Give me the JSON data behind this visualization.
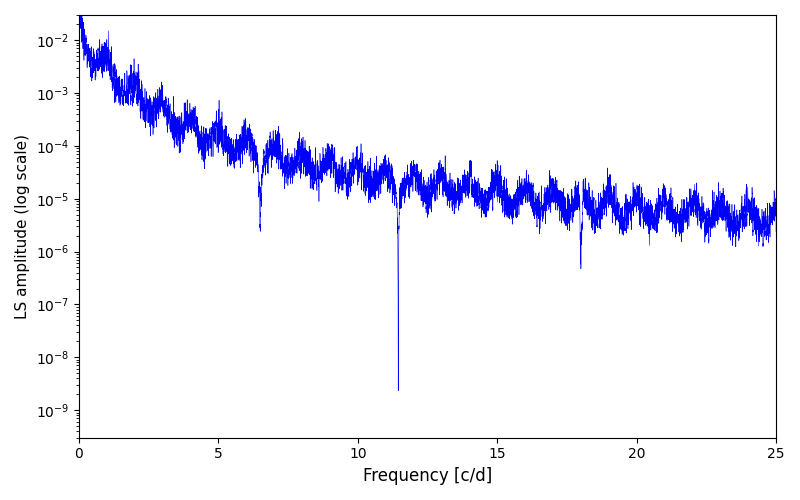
{
  "title": "",
  "xlabel": "Frequency [c/d]",
  "ylabel": "LS amplitude (log scale)",
  "xlim": [
    0,
    25
  ],
  "ylim": [
    3e-10,
    0.03
  ],
  "line_color": "#0000ff",
  "line_width": 0.4,
  "figsize": [
    8.0,
    5.0
  ],
  "dpi": 100,
  "freq_max": 25.0,
  "n_points": 15000,
  "seed": 17,
  "obs_baseline": 5.0,
  "obs_cadence": 1.0,
  "power_law_knee": 0.8,
  "power_law_slope": 2.2,
  "amplitude_scale": 0.005,
  "noise_floor": 3e-05
}
